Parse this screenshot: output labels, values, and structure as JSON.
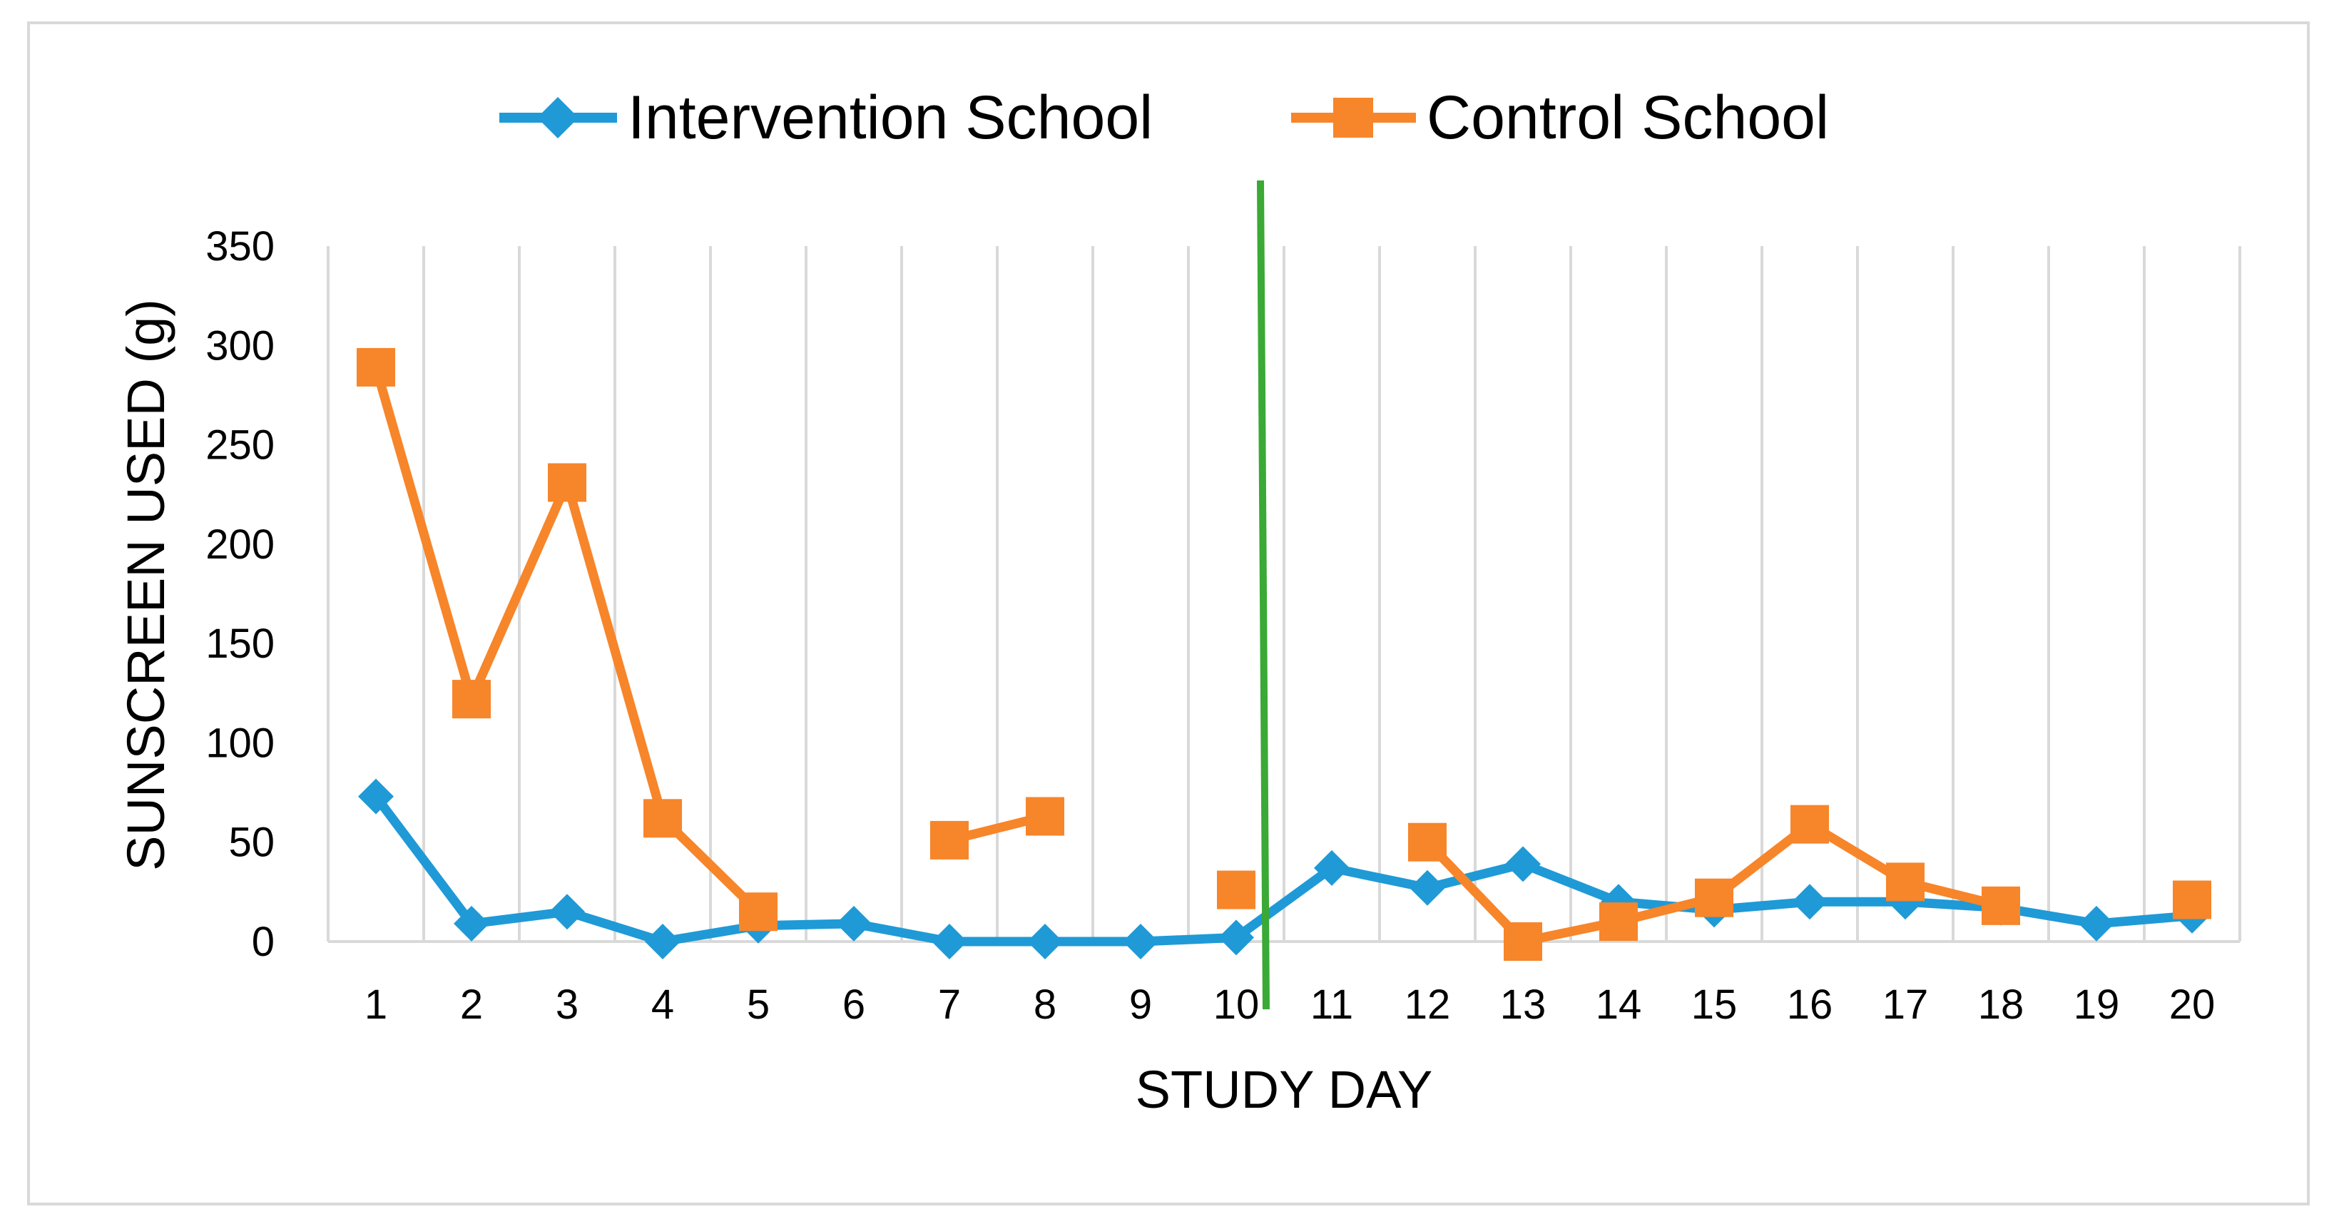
{
  "chart_data": {
    "type": "line",
    "title": "",
    "xlabel": "STUDY DAY",
    "ylabel": "SUNSCREEN USED (g)",
    "categories": [
      "1",
      "2",
      "3",
      "4",
      "5",
      "6",
      "7",
      "8",
      "9",
      "10",
      "11",
      "12",
      "13",
      "14",
      "15",
      "16",
      "17",
      "18",
      "19",
      "20"
    ],
    "ylim": [
      0,
      350
    ],
    "yticks": [
      0,
      50,
      100,
      150,
      200,
      250,
      300,
      350
    ],
    "grid": "vertical",
    "legend_position": "top-center",
    "series": [
      {
        "name": "Intervention School",
        "color": "#1f9ad6",
        "marker": "diamond",
        "values": [
          73,
          9,
          15,
          0,
          8,
          9,
          0,
          0,
          0,
          2,
          37,
          27,
          39,
          20,
          16,
          20,
          20,
          17,
          9,
          13
        ]
      },
      {
        "name": "Control School",
        "color": "#f7852a",
        "marker": "square",
        "values": [
          289,
          122,
          231,
          62,
          15,
          null,
          51,
          63,
          null,
          26,
          null,
          50,
          0,
          10,
          22,
          59,
          30,
          18,
          null,
          21
        ]
      }
    ],
    "annotations": [
      {
        "type": "vertical-line",
        "between_categories": [
          "10",
          "11"
        ],
        "color": "#3aa935"
      }
    ]
  }
}
